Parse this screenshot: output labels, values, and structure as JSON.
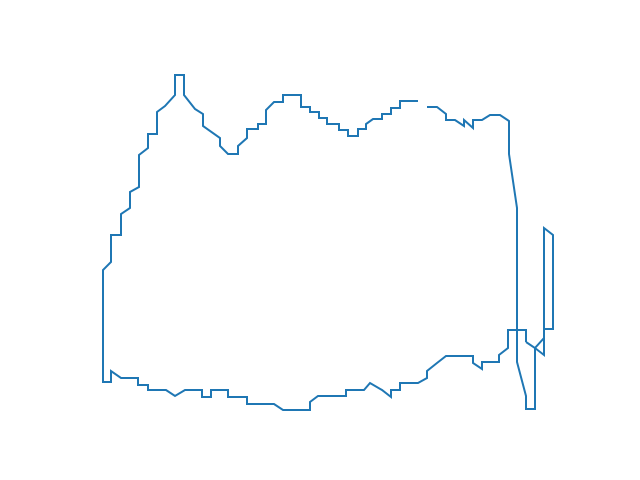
{
  "figure": {
    "background": "#ffffff",
    "shape": "outline-polyline",
    "stroke_color": "#1f77b4",
    "axes_visible": false,
    "grid": false
  }
}
